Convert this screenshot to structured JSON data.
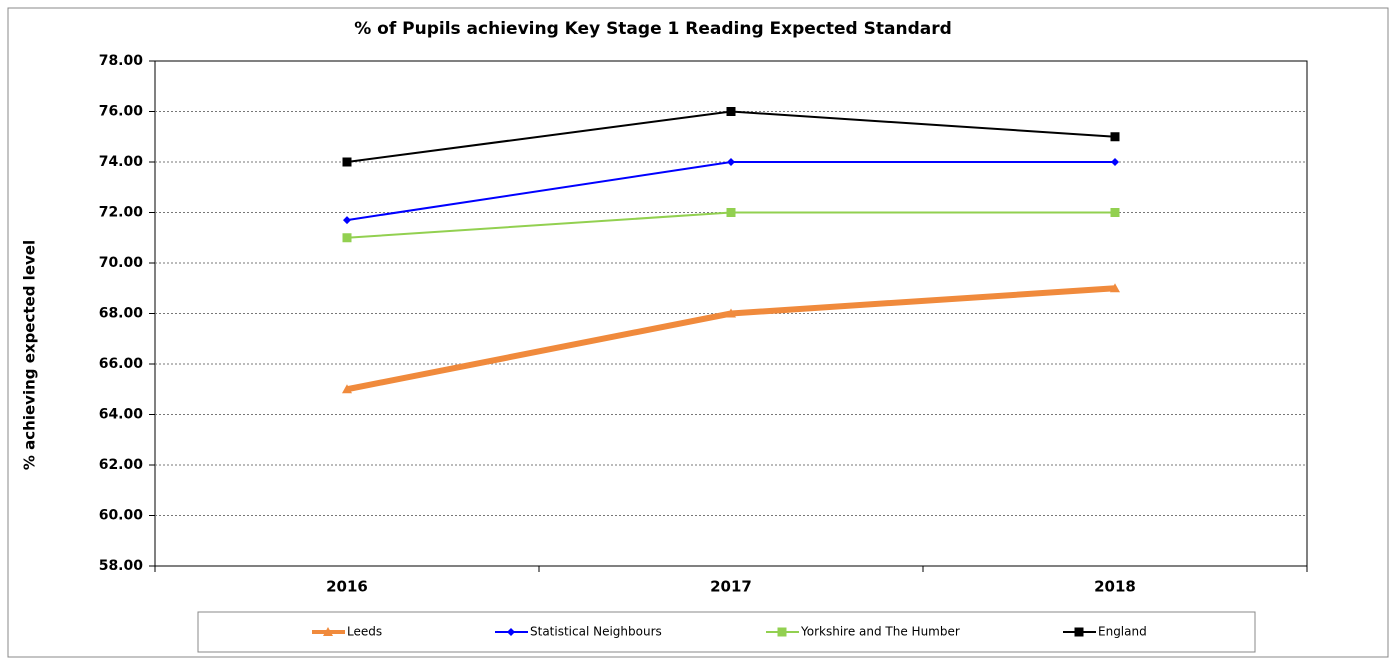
{
  "chart_data": {
    "type": "line",
    "title": "% of Pupils achieving Key Stage 1 Reading Expected Standard",
    "y_label": "% achieving expected level",
    "categories": [
      "2016",
      "2017",
      "2018"
    ],
    "series": [
      {
        "name": "Leeds",
        "color": "#f08a3c",
        "width": 6,
        "marker": "triangle",
        "values": [
          65,
          68,
          69
        ]
      },
      {
        "name": "Statistical Neighbours",
        "color": "#0000ff",
        "width": 2,
        "marker": "diamond",
        "values": [
          71.7,
          74,
          74
        ]
      },
      {
        "name": "Yorkshire and The Humber",
        "color": "#92d050",
        "width": 2,
        "marker": "square",
        "values": [
          71,
          72,
          72
        ]
      },
      {
        "name": "England",
        "color": "#000000",
        "width": 2,
        "marker": "square",
        "values": [
          74,
          76,
          75
        ]
      }
    ],
    "ylim": [
      58,
      78
    ],
    "yticks": [
      {
        "value": 58,
        "label": "58.00"
      },
      {
        "value": 60,
        "label": "60.00"
      },
      {
        "value": 62,
        "label": "62.00"
      },
      {
        "value": 64,
        "label": "64.00"
      },
      {
        "value": 66,
        "label": "66.00"
      },
      {
        "value": 68,
        "label": "68.00"
      },
      {
        "value": 70,
        "label": "70.00"
      },
      {
        "value": 72,
        "label": "72.00"
      },
      {
        "value": 74,
        "label": "74.00"
      },
      {
        "value": 76,
        "label": "76.00"
      },
      {
        "value": 78,
        "label": "78.00"
      }
    ],
    "grid": true,
    "legend": "bottom"
  }
}
